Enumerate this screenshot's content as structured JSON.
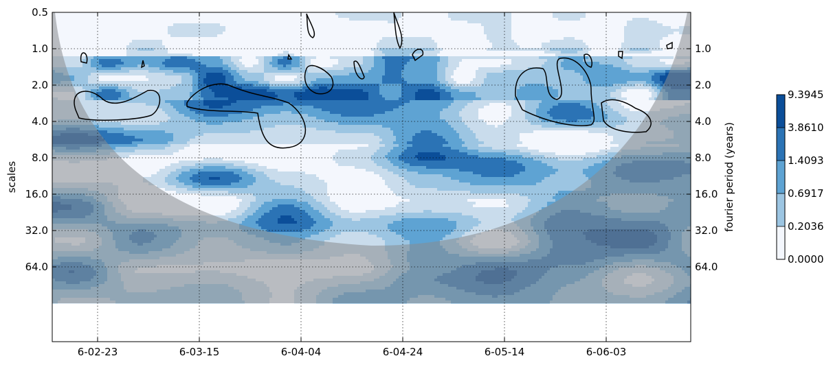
{
  "chart_data": {
    "type": "heatmap",
    "subtype": "wavelet-power-spectrum",
    "title": "",
    "xlabel": "",
    "ylabel": "scales",
    "ylabel_right": "fourier period (years)",
    "y_scale": "log2",
    "y_inverted": true,
    "x_ticks": [
      "6-02-23",
      "6-03-15",
      "6-04-04",
      "6-04-24",
      "6-05-14",
      "6-06-03"
    ],
    "y_ticks_left": [
      "0.5",
      "1.0",
      "2.0",
      "4.0",
      "8.0",
      "16.0",
      "32.0",
      "64.0"
    ],
    "y_ticks_right": [
      "1.0",
      "2.0",
      "4.0",
      "8.0",
      "16.0",
      "32.0",
      "64.0"
    ],
    "colorbar": {
      "levels": [
        "0.0000",
        "0.2036",
        "0.6917",
        "1.4093",
        "3.8610",
        "9.3945"
      ],
      "colors": [
        "#f4f7fd",
        "#c9dcec",
        "#9cc5e2",
        "#5ea3d3",
        "#2b73b5",
        "#0b4e99"
      ]
    },
    "grid": true,
    "cone_of_influence": true,
    "significance_contours": true,
    "colors": {
      "coi": "#888c90",
      "contour": "#000000"
    }
  }
}
